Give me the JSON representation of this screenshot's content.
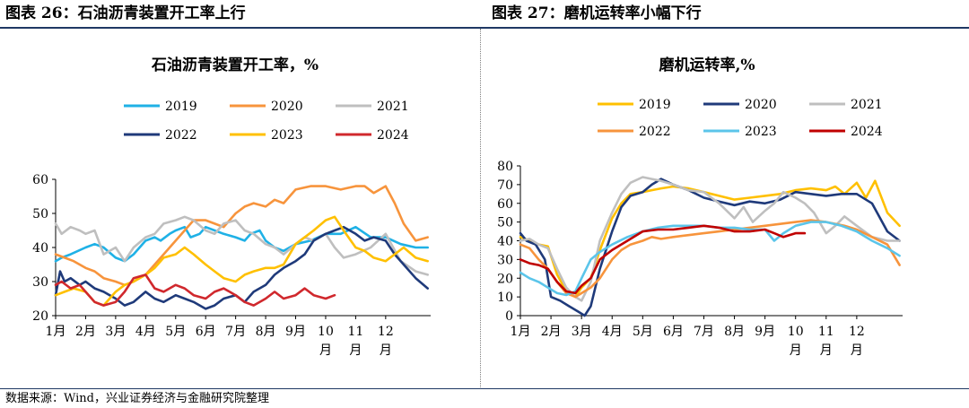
{
  "headers": {
    "left": "图表 26：石油沥青装置开工率上行",
    "right": "图表 27：磨机运转率小幅下行"
  },
  "source": "数据来源：Wind，兴业证券经济与金融研究院整理",
  "chart_data": [
    {
      "type": "line",
      "title": "石油沥青装置开工率，%",
      "ylim": [
        20,
        60
      ],
      "yticks": [
        20,
        30,
        40,
        50,
        60
      ],
      "xlim": [
        0,
        12.5
      ],
      "month_labels": [
        "1月",
        "2月",
        "3月",
        "4月",
        "5月",
        "6月",
        "7月",
        "8月",
        "9月",
        "10月",
        "11月",
        "12月"
      ],
      "legend_position": "top-center",
      "grid": false,
      "series": [
        {
          "name": "2019",
          "color": "#1fb1e6",
          "x": [
            0,
            0.2,
            0.5,
            1,
            1.3,
            1.6,
            2,
            2.3,
            2.6,
            3,
            3.3,
            3.5,
            3.8,
            4,
            4.3,
            4.5,
            4.8,
            5,
            5.3,
            5.6,
            6,
            6.3,
            6.5,
            6.8,
            7,
            7.3,
            7.6,
            8,
            8.5,
            9,
            9.5,
            10,
            10.5,
            11,
            11.5,
            12,
            12.4
          ],
          "y": [
            36,
            37,
            38,
            40,
            41,
            40,
            37,
            36,
            38,
            42,
            43,
            42,
            44,
            45,
            46,
            43,
            44,
            46,
            45,
            44,
            43,
            42,
            44,
            45,
            42,
            40,
            39,
            41,
            42,
            44,
            44,
            46,
            43,
            43,
            41,
            40,
            40
          ]
        },
        {
          "name": "2020",
          "color": "#f7943c",
          "x": [
            0,
            0.3,
            0.6,
            1,
            1.3,
            1.6,
            2,
            2.3,
            2.6,
            3,
            3.3,
            3.6,
            4,
            4.3,
            4.6,
            5,
            5.3,
            5.6,
            6,
            6.3,
            6.6,
            7,
            7.3,
            7.6,
            8,
            8.5,
            9,
            9.5,
            10,
            10.3,
            10.6,
            11,
            11.3,
            11.6,
            12,
            12.4
          ],
          "y": [
            38,
            37,
            36,
            34,
            33,
            31,
            30,
            29,
            30,
            32,
            35,
            38,
            42,
            45,
            48,
            48,
            47,
            46,
            50,
            52,
            53,
            52,
            54,
            53,
            57,
            58,
            58,
            57,
            58,
            58,
            56,
            58,
            53,
            47,
            42,
            43
          ]
        },
        {
          "name": "2021",
          "color": "#bfbfbf",
          "x": [
            0,
            0.2,
            0.5,
            0.8,
            1,
            1.3,
            1.6,
            2,
            2.3,
            2.6,
            3,
            3.3,
            3.6,
            4,
            4.3,
            4.6,
            5,
            5.3,
            5.6,
            6,
            6.3,
            6.6,
            7,
            7.3,
            7.6,
            8,
            8.3,
            8.6,
            9,
            9.3,
            9.6,
            10,
            10.5,
            11,
            11.5,
            12,
            12.4
          ],
          "y": [
            47,
            44,
            46,
            45,
            44,
            45,
            38,
            40,
            36,
            40,
            43,
            44,
            47,
            48,
            49,
            48,
            45,
            44,
            47,
            48,
            45,
            44,
            41,
            40,
            38,
            41,
            43,
            42,
            44,
            40,
            37,
            38,
            40,
            44,
            36,
            33,
            32
          ]
        },
        {
          "name": "2022",
          "color": "#1f3a7a",
          "x": [
            0,
            0.15,
            0.3,
            0.5,
            0.8,
            1,
            1.3,
            1.6,
            2,
            2.3,
            2.6,
            3,
            3.3,
            3.6,
            4,
            4.3,
            4.6,
            5,
            5.3,
            5.6,
            6,
            6.3,
            6.6,
            7,
            7.3,
            7.6,
            8,
            8.3,
            8.6,
            9,
            9.3,
            9.6,
            10,
            10.3,
            10.6,
            11,
            11.3,
            11.6,
            12,
            12.4
          ],
          "y": [
            26,
            33,
            30,
            31,
            29,
            30,
            28,
            27,
            25,
            23,
            24,
            27,
            25,
            24,
            26,
            25,
            24,
            22,
            23,
            25,
            26,
            24,
            27,
            29,
            32,
            34,
            36,
            38,
            42,
            44,
            45,
            46,
            44,
            42,
            43,
            42,
            38,
            35,
            31,
            28
          ]
        },
        {
          "name": "2023",
          "color": "#ffc000",
          "x": [
            0,
            0.3,
            0.6,
            1,
            1.3,
            1.6,
            2,
            2.3,
            2.6,
            3,
            3.3,
            3.6,
            4,
            4.3,
            4.6,
            5,
            5.3,
            5.6,
            6,
            6.3,
            6.6,
            7,
            7.3,
            7.6,
            8,
            8.3,
            8.6,
            9,
            9.3,
            9.6,
            10,
            10.3,
            10.6,
            11,
            11.3,
            11.6,
            12,
            12.4
          ],
          "y": [
            26,
            27,
            28,
            27,
            24,
            23,
            27,
            29,
            30,
            32,
            34,
            37,
            38,
            40,
            38,
            35,
            33,
            31,
            30,
            32,
            33,
            34,
            34,
            35,
            41,
            43,
            45,
            48,
            49,
            45,
            40,
            39,
            37,
            36,
            38,
            40,
            37,
            36
          ]
        },
        {
          "name": "2024",
          "color": "#d0282d",
          "x": [
            0,
            0.2,
            0.5,
            0.8,
            1,
            1.3,
            1.6,
            2,
            2.3,
            2.6,
            3,
            3.3,
            3.6,
            4,
            4.3,
            4.6,
            5,
            5.3,
            5.6,
            6,
            6.3,
            6.6,
            7,
            7.3,
            7.6,
            8,
            8.3,
            8.6,
            9,
            9.3
          ],
          "y": [
            29,
            30,
            28,
            29,
            27,
            24,
            23,
            24,
            27,
            31,
            32,
            28,
            27,
            29,
            28,
            26,
            25,
            27,
            28,
            26,
            24,
            23,
            25,
            27,
            25,
            26,
            28,
            26,
            25,
            26
          ]
        }
      ]
    },
    {
      "type": "line",
      "title": "磨机运转率,%",
      "ylim": [
        0,
        80
      ],
      "yticks": [
        0,
        10,
        20,
        30,
        40,
        50,
        60,
        70,
        80
      ],
      "xlim": [
        0,
        12.5
      ],
      "month_labels": [
        "1月",
        "2月",
        "3月",
        "4月",
        "5月",
        "6月",
        "7月",
        "8月",
        "9月",
        "10月",
        "11月",
        "12月"
      ],
      "legend_position": "top-center",
      "grid": false,
      "series": [
        {
          "name": "2019",
          "color": "#ffc000",
          "x": [
            0,
            0.3,
            0.6,
            0.9,
            1.2,
            1.5,
            1.8,
            2,
            2.3,
            2.6,
            3,
            3.3,
            3.6,
            4,
            4.3,
            4.6,
            5,
            5.5,
            6,
            6.5,
            7,
            7.5,
            8,
            8.5,
            9,
            9.5,
            10,
            10.3,
            10.6,
            11,
            11.3,
            11.6,
            12,
            12.4
          ],
          "y": [
            42,
            40,
            38,
            37,
            22,
            13,
            10,
            15,
            20,
            35,
            52,
            60,
            65,
            66,
            67,
            68,
            69,
            68,
            66,
            64,
            62,
            63,
            64,
            65,
            67,
            68,
            67,
            69,
            65,
            71,
            63,
            72,
            55,
            48
          ]
        },
        {
          "name": "2020",
          "color": "#1f3a7a",
          "x": [
            0,
            0.2,
            0.5,
            0.8,
            1,
            1.3,
            1.6,
            1.9,
            2.1,
            2.3,
            2.6,
            3,
            3.3,
            3.6,
            4,
            4.3,
            4.6,
            5,
            5.5,
            6,
            6.5,
            7,
            7.5,
            8,
            8.5,
            9,
            9.5,
            10,
            10.5,
            11,
            11.5,
            12,
            12.4
          ],
          "y": [
            44,
            40,
            38,
            30,
            10,
            8,
            5,
            2,
            0,
            5,
            25,
            45,
            58,
            64,
            66,
            70,
            73,
            70,
            67,
            63,
            61,
            59,
            61,
            60,
            62,
            66,
            65,
            64,
            65,
            65,
            60,
            45,
            40
          ]
        },
        {
          "name": "2021",
          "color": "#bfbfbf",
          "x": [
            0,
            0.3,
            0.6,
            0.9,
            1.2,
            1.5,
            1.8,
            2,
            2.3,
            2.6,
            3,
            3.3,
            3.6,
            4,
            4.3,
            4.6,
            5,
            5.5,
            6,
            6.5,
            7,
            7.3,
            7.6,
            8,
            8.3,
            8.6,
            9,
            9.3,
            9.6,
            10,
            10.3,
            10.6,
            11,
            11.5,
            12,
            12.4
          ],
          "y": [
            40,
            41,
            38,
            36,
            25,
            15,
            10,
            8,
            18,
            40,
            55,
            65,
            71,
            74,
            73,
            72,
            70,
            67,
            66,
            60,
            52,
            58,
            50,
            56,
            60,
            66,
            63,
            60,
            55,
            44,
            48,
            53,
            48,
            42,
            40,
            40
          ]
        },
        {
          "name": "2022",
          "color": "#f7943c",
          "x": [
            0,
            0.3,
            0.6,
            0.9,
            1.2,
            1.5,
            1.8,
            2,
            2.3,
            2.6,
            3,
            3.3,
            3.6,
            4,
            4.3,
            4.6,
            5,
            5.5,
            6,
            6.5,
            7,
            7.5,
            8,
            8.5,
            9,
            9.5,
            10,
            10.3,
            10.6,
            11,
            11.5,
            12,
            12.4
          ],
          "y": [
            38,
            36,
            30,
            25,
            18,
            12,
            10,
            12,
            15,
            20,
            30,
            35,
            38,
            40,
            42,
            41,
            42,
            43,
            44,
            45,
            46,
            47,
            48,
            49,
            50,
            51,
            50,
            49,
            48,
            46,
            42,
            38,
            27
          ]
        },
        {
          "name": "2023",
          "color": "#5bc5ea",
          "x": [
            0,
            0.3,
            0.6,
            0.9,
            1.2,
            1.5,
            1.8,
            2,
            2.3,
            2.6,
            3,
            3.5,
            4,
            4.5,
            5,
            5.5,
            6,
            6.5,
            7,
            7.5,
            8,
            8.3,
            8.6,
            9,
            9.5,
            10,
            10.5,
            11,
            11.5,
            12,
            12.4
          ],
          "y": [
            23,
            20,
            18,
            15,
            12,
            11,
            13,
            20,
            30,
            34,
            38,
            42,
            45,
            47,
            48,
            48,
            48,
            47,
            47,
            46,
            46,
            40,
            44,
            48,
            50,
            50,
            48,
            45,
            40,
            36,
            32
          ]
        },
        {
          "name": "2024",
          "color": "#c00000",
          "x": [
            0,
            0.3,
            0.6,
            0.9,
            1.2,
            1.5,
            1.8,
            2,
            2.3,
            2.6,
            3,
            3.5,
            4,
            4.5,
            5,
            5.5,
            6,
            6.5,
            7,
            7.5,
            8,
            8.3,
            8.6,
            9,
            9.3
          ],
          "y": [
            30,
            28,
            27,
            25,
            18,
            13,
            12,
            16,
            20,
            30,
            35,
            40,
            45,
            46,
            46,
            47,
            48,
            47,
            45,
            45,
            46,
            44,
            42,
            44,
            44
          ]
        }
      ]
    }
  ]
}
